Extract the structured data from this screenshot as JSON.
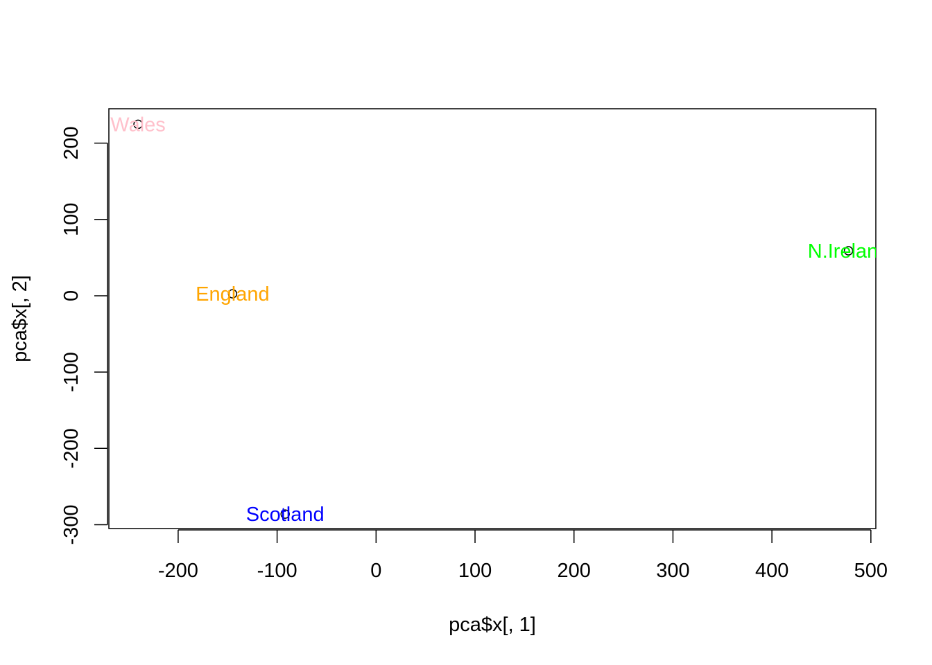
{
  "chart_data": {
    "type": "scatter",
    "xlabel": "pca$x[, 1]",
    "ylabel": "pca$x[, 2]",
    "xlim": [
      -270,
      505
    ],
    "ylim": [
      -305,
      245
    ],
    "x_ticks": [
      -200,
      -100,
      0,
      100,
      200,
      300,
      400,
      500
    ],
    "y_ticks": [
      -300,
      -200,
      -100,
      0,
      100,
      200
    ],
    "x_tick_labels": [
      "-200",
      "-100",
      "0",
      "100",
      "200",
      "300",
      "400",
      "500"
    ],
    "y_tick_labels": [
      "-300",
      "-200",
      "-100",
      "0",
      "100",
      "200"
    ],
    "points": [
      {
        "label": "England",
        "x": -144.99,
        "y": 2.53,
        "color": "#FFA500"
      },
      {
        "label": "Wales",
        "x": -240.53,
        "y": 224.65,
        "color": "#FFC0CB"
      },
      {
        "label": "Scotland",
        "x": -91.87,
        "y": -286.08,
        "color": "#0000FF"
      },
      {
        "label": "N.Ireland",
        "x": 477.39,
        "y": 58.9,
        "color": "#00FF00"
      }
    ],
    "grid": false,
    "legend": "none"
  }
}
